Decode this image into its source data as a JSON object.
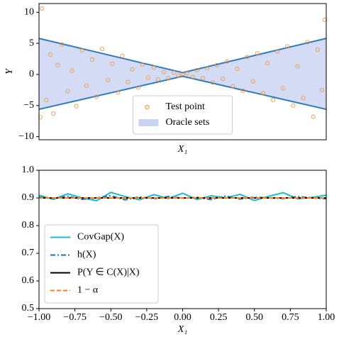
{
  "chart_data": [
    {
      "type": "scatter",
      "ylabel": "Y",
      "xlabel": "X₁",
      "xlim": [
        -1,
        1
      ],
      "ylim": [
        -10.5,
        11.4
      ],
      "yticks": [
        {
          "value": -10,
          "label": "−10"
        },
        {
          "value": -5,
          "label": "−5"
        },
        0,
        5,
        10
      ],
      "legend": "lower center",
      "series": [
        {
          "name": "Test point",
          "color": "#f28e2b",
          "x": [
            -0.98,
            -0.95,
            -0.92,
            -0.9,
            -0.87,
            -0.84,
            -0.8,
            -0.77,
            -0.74,
            -0.7,
            -0.67,
            -0.63,
            -0.6,
            -0.56,
            -0.52,
            -0.49,
            -0.45,
            -0.42,
            -0.38,
            -0.35,
            -0.31,
            -0.28,
            -0.24,
            -0.2,
            -0.17,
            -0.13,
            -0.1,
            -0.06,
            -0.03,
            0.0,
            0.03,
            0.07,
            0.1,
            0.14,
            0.17,
            0.21,
            0.24,
            0.28,
            0.31,
            0.35,
            0.38,
            0.42,
            0.45,
            0.49,
            0.52,
            0.56,
            0.59,
            0.63,
            0.66,
            0.7,
            0.73,
            0.77,
            0.8,
            0.84,
            0.87,
            0.91,
            0.94,
            0.97,
            -0.99,
            0.99
          ],
          "values": [
            10.6,
            -4.1,
            3.2,
            -6.3,
            1.5,
            4.8,
            -2.7,
            0.6,
            -5.1,
            3.9,
            -1.8,
            2.4,
            -3.6,
            4.1,
            -0.9,
            1.7,
            -2.9,
            3.0,
            -1.2,
            0.8,
            -2.1,
            1.6,
            -0.5,
            1.1,
            -0.8,
            0.4,
            -0.6,
            0.3,
            -0.2,
            0.1,
            0.2,
            -0.4,
            0.7,
            -0.6,
            1.0,
            -1.3,
            1.5,
            -0.7,
            2.1,
            -1.9,
            0.9,
            -2.6,
            2.8,
            -1.1,
            3.4,
            -3.0,
            1.8,
            -4.1,
            3.7,
            -2.2,
            4.5,
            -5.0,
            1.3,
            -3.8,
            5.2,
            -6.8,
            4.0,
            -2.5,
            -6.9,
            8.8
          ]
        }
      ],
      "band": {
        "name": "Oracle sets",
        "color": "#c9d3f3",
        "edge_color": "#2f7bbd",
        "x": [
          -1,
          0,
          1
        ],
        "upper": [
          5.8,
          0.3,
          5.8
        ],
        "lower": [
          -5.6,
          -0.3,
          -5.6
        ]
      }
    },
    {
      "type": "line",
      "xlabel": "X₁",
      "xlim": [
        -1,
        1
      ],
      "ylim": [
        0.5,
        1.0
      ],
      "xticks": [
        {
          "value": -1,
          "label": "−1.00"
        },
        {
          "value": -0.75,
          "label": "−0.75"
        },
        {
          "value": -0.5,
          "label": "−0.50"
        },
        {
          "value": -0.25,
          "label": "−0.25"
        },
        {
          "value": 0,
          "label": "0.00"
        },
        {
          "value": 0.25,
          "label": "0.25"
        },
        {
          "value": 0.5,
          "label": "0.50"
        },
        {
          "value": 0.75,
          "label": "0.75"
        },
        {
          "value": 1,
          "label": "1.00"
        }
      ],
      "yticks": [
        0.5,
        0.6,
        0.7,
        0.8,
        0.9,
        {
          "value": 1.0,
          "label": "1.0"
        }
      ],
      "legend": "lower left",
      "series": [
        {
          "name": "CovGap(X)",
          "color": "#17becf",
          "style": "solid",
          "x": [
            -1,
            -0.9,
            -0.8,
            -0.7,
            -0.6,
            -0.5,
            -0.4,
            -0.3,
            -0.2,
            -0.1,
            0,
            0.1,
            0.2,
            0.3,
            0.4,
            0.5,
            0.6,
            0.7,
            0.8,
            0.9,
            1
          ],
          "values": [
            0.91,
            0.895,
            0.915,
            0.9,
            0.89,
            0.92,
            0.905,
            0.893,
            0.912,
            0.898,
            0.917,
            0.894,
            0.908,
            0.9,
            0.913,
            0.891,
            0.906,
            0.919,
            0.897,
            0.902,
            0.91
          ]
        },
        {
          "name": "h(X)",
          "color": "#1f6fb4",
          "style": "dashdot",
          "x": [
            -1,
            -0.9,
            -0.8,
            -0.7,
            -0.6,
            -0.5,
            -0.4,
            -0.3,
            -0.2,
            -0.1,
            0,
            0.1,
            0.2,
            0.3,
            0.4,
            0.5,
            0.6,
            0.7,
            0.8,
            0.9,
            1
          ],
          "values": [
            0.903,
            0.898,
            0.906,
            0.895,
            0.9,
            0.908,
            0.893,
            0.904,
            0.897,
            0.905,
            0.899,
            0.902,
            0.894,
            0.907,
            0.896,
            0.903,
            0.9,
            0.898,
            0.905,
            0.9,
            0.897
          ]
        },
        {
          "name": "P(Y ∈ C(X)|X)",
          "color": "#000000",
          "style": "solid",
          "x": [
            -1,
            1
          ],
          "values": [
            0.9,
            0.9
          ]
        },
        {
          "name": "1 − α",
          "color": "#ff7f0e",
          "style": "dashed",
          "x": [
            -1,
            1
          ],
          "values": [
            0.9,
            0.9
          ]
        }
      ]
    }
  ]
}
